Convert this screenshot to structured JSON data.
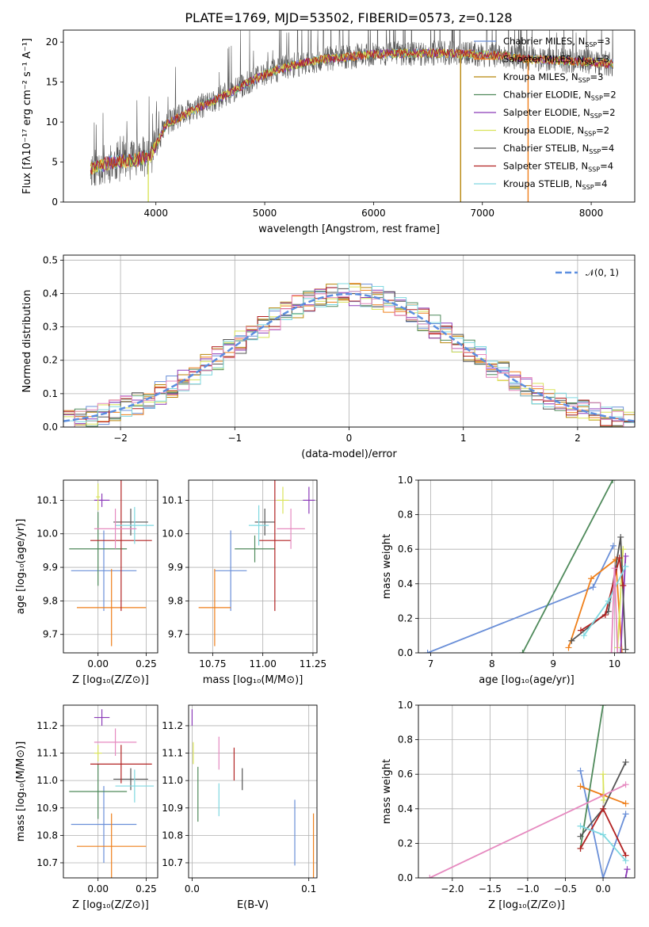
{
  "page": {
    "title": "PLATE=1769, MJD=53502, FIBERID=0573, z=0.128"
  },
  "chart_data": [
    {
      "id": "spectrum",
      "type": "line",
      "title": "PLATE=1769, MJD=53502, FIBERID=0573, z=0.128",
      "xlabel": "wavelength [Angstrom, rest frame]",
      "ylabel": "Flux [fλ10⁻¹⁷ erg cm⁻² s⁻¹ A⁻¹]",
      "xlim": [
        3150,
        8400
      ],
      "ylim": [
        0,
        21.5
      ],
      "xticks": [
        4000,
        5000,
        6000,
        7000,
        8000
      ],
      "yticks": [
        0,
        5,
        10,
        15,
        20
      ],
      "legend_loc": "right",
      "legend": [
        {
          "text": "Chabrier MILES, N",
          "sub": "SSP",
          "suffix": "=3",
          "color": "#6a8fd8"
        },
        {
          "text": "Salpeter MILES, N",
          "sub": "SSP",
          "suffix": "=3",
          "color": "#ef7f1a"
        },
        {
          "text": "Kroupa MILES, N",
          "sub": "SSP",
          "suffix": "=3",
          "color": "#b8860b"
        },
        {
          "text": "Chabrier ELODIE, N",
          "sub": "SSP",
          "suffix": "=2",
          "color": "#4f8a5b"
        },
        {
          "text": "Salpeter ELODIE, N",
          "sub": "SSP",
          "suffix": "=2",
          "color": "#8b3ab8"
        },
        {
          "text": "Kroupa ELODIE, N",
          "sub": "SSP",
          "suffix": "=2",
          "color": "#d9e35a"
        },
        {
          "text": "Chabrier STELIB, N",
          "sub": "SSP",
          "suffix": "=4",
          "color": "#555555"
        },
        {
          "text": "Salpeter STELIB, N",
          "sub": "SSP",
          "suffix": "=4",
          "color": "#b22222"
        },
        {
          "text": "Kroupa STELIB, N",
          "sub": "SSP",
          "suffix": "=4",
          "color": "#7fd8e0"
        }
      ],
      "continuum_wavelength": [
        3400,
        3600,
        3800,
        3950,
        4100,
        4300,
        4500,
        4700,
        4900,
        5100,
        5300,
        5500,
        5800,
        6000,
        6300,
        6600,
        6900,
        7200,
        7400,
        7700,
        8000,
        8200
      ],
      "continuum_flux": [
        4.2,
        5.0,
        5.2,
        5.8,
        9.8,
        11.2,
        12.5,
        13.8,
        15.3,
        16.5,
        17.2,
        17.8,
        18.2,
        18.5,
        18.6,
        18.6,
        18.5,
        18.3,
        17.9,
        17.7,
        17.5,
        17.3
      ],
      "drop_lines": [
        {
          "wavelength": 6800,
          "color": "#b8860b"
        },
        {
          "wavelength": 7420,
          "color": "#ef7f1a"
        },
        {
          "wavelength": 3930,
          "color": "#d9e35a"
        }
      ]
    },
    {
      "id": "residuals",
      "type": "bar",
      "xlabel": "(data-model)/error",
      "ylabel": "Normed distribution",
      "xlim": [
        -2.5,
        2.5
      ],
      "ylim": [
        0,
        0.515
      ],
      "xticks": [
        -2,
        -1,
        0,
        1,
        2
      ],
      "yticks": [
        0.0,
        0.1,
        0.2,
        0.3,
        0.4,
        0.5
      ],
      "bin_width": 0.1,
      "legend": [
        {
          "text": "𝒩(0, 1)",
          "color": "#5b8ee0"
        }
      ],
      "legend_loc": "upper right",
      "reference_curve": "N(0,1)",
      "grid": true
    },
    {
      "id": "age-vs-Z",
      "type": "scatter",
      "xlabel": "Z [log₁₀(Z/Z⊙)]",
      "ylabel": "age  [log₁₀(age/yr)]",
      "xlim": [
        -0.18,
        0.31
      ],
      "ylim": [
        9.645,
        10.16
      ],
      "xticks": [
        0.0,
        0.25
      ],
      "yticks": [
        9.7,
        9.8,
        9.9,
        10.0,
        10.1
      ],
      "points": [
        {
          "x": 0.03,
          "y": 9.89,
          "xerr": 0.17,
          "yerr": 0.12,
          "color": "#6a8fd8"
        },
        {
          "x": 0.07,
          "y": 9.78,
          "xerr": 0.18,
          "yerr": 0.115,
          "color": "#ef7f1a"
        },
        {
          "x": 0.0,
          "y": 9.955,
          "xerr": 0.15,
          "yerr": 0.11,
          "color": "#4f8a5b"
        },
        {
          "x": 0.02,
          "y": 10.1,
          "xerr": 0.04,
          "yerr": 0.02,
          "color": "#8b3ab8"
        },
        {
          "x": 0.0,
          "y": 10.11,
          "xerr": 0.01,
          "yerr": 0.04,
          "color": "#d9e35a"
        },
        {
          "x": 0.17,
          "y": 10.035,
          "xerr": 0.09,
          "yerr": 0.04,
          "color": "#555555"
        },
        {
          "x": 0.12,
          "y": 9.98,
          "xerr": 0.16,
          "yerr": 0.21,
          "color": "#b22222"
        },
        {
          "x": 0.19,
          "y": 10.025,
          "xerr": 0.1,
          "yerr": 0.055,
          "color": "#7fd8e0"
        },
        {
          "x": 0.09,
          "y": 10.015,
          "xerr": 0.11,
          "yerr": 0.06,
          "color": "#e68ac0"
        }
      ]
    },
    {
      "id": "age-vs-mass",
      "type": "scatter",
      "xlabel": "mass [log₁₀(M/M⊙)]",
      "ylabel": "",
      "xlim": [
        10.63,
        11.27
      ],
      "ylim": [
        9.645,
        10.16
      ],
      "xticks": [
        10.75,
        11.0,
        11.25
      ],
      "yticks": [
        9.7,
        9.8,
        9.9,
        10.0,
        10.1
      ],
      "points": [
        {
          "x": 10.84,
          "y": 9.89,
          "xerr": 0.08,
          "yerr": 0.12,
          "color": "#6a8fd8"
        },
        {
          "x": 10.76,
          "y": 9.78,
          "xerr": 0.08,
          "yerr": 0.115,
          "color": "#ef7f1a"
        },
        {
          "x": 10.96,
          "y": 9.955,
          "xerr": 0.1,
          "yerr": 0.04,
          "color": "#4f8a5b"
        },
        {
          "x": 11.23,
          "y": 10.1,
          "xerr": 0.03,
          "yerr": 0.04,
          "color": "#8b3ab8"
        },
        {
          "x": 11.1,
          "y": 10.1,
          "xerr": 0.03,
          "yerr": 0.04,
          "color": "#d9e35a"
        },
        {
          "x": 11.01,
          "y": 10.035,
          "xerr": 0.05,
          "yerr": 0.04,
          "color": "#555555"
        },
        {
          "x": 11.06,
          "y": 9.98,
          "xerr": 0.08,
          "yerr": 0.21,
          "color": "#b22222"
        },
        {
          "x": 10.98,
          "y": 10.025,
          "xerr": 0.05,
          "yerr": 0.06,
          "color": "#7fd8e0"
        },
        {
          "x": 11.14,
          "y": 10.015,
          "xerr": 0.07,
          "yerr": 0.06,
          "color": "#e68ac0"
        }
      ]
    },
    {
      "id": "mass-weight-vs-age",
      "type": "line",
      "xlabel": "age  [log₁₀(age/yr)]",
      "ylabel": "mass weight",
      "xlim": [
        6.8,
        10.33
      ],
      "ylim": [
        0,
        1.0
      ],
      "xticks": [
        7,
        8,
        9,
        10
      ],
      "yticks": [
        0.0,
        0.2,
        0.4,
        0.6,
        0.8,
        1.0
      ],
      "series": [
        {
          "color": "#6a8fd8",
          "x": [
            6.95,
            9.65,
            9.98
          ],
          "y": [
            0.0,
            0.38,
            0.62
          ]
        },
        {
          "color": "#ef7f1a",
          "x": [
            9.25,
            9.62,
            10.02,
            10.12
          ],
          "y": [
            0.03,
            0.43,
            0.54,
            0.0
          ]
        },
        {
          "color": "#4f8a5b",
          "x": [
            8.5,
            9.97
          ],
          "y": [
            0.0,
            1.0
          ]
        },
        {
          "color": "#8b3ab8",
          "x": [
            10.1,
            10.18
          ],
          "y": [
            0.0,
            0.56
          ]
        },
        {
          "color": "#d9e35a",
          "x": [
            10.05,
            10.14
          ],
          "y": [
            0.03,
            0.6
          ]
        },
        {
          "color": "#555555",
          "x": [
            9.3,
            9.9,
            10.1,
            10.18
          ],
          "y": [
            0.07,
            0.24,
            0.67,
            0.02
          ]
        },
        {
          "color": "#b22222",
          "x": [
            9.45,
            9.85,
            10.08,
            10.14
          ],
          "y": [
            0.13,
            0.22,
            0.55,
            0.39
          ]
        },
        {
          "color": "#7fd8e0",
          "x": [
            9.5,
            9.9,
            10.18
          ],
          "y": [
            0.1,
            0.3,
            0.5
          ]
        },
        {
          "color": "#e68ac0",
          "x": [
            9.95,
            10.0,
            10.05
          ],
          "y": [
            0.0,
            0.49,
            0.0
          ]
        }
      ]
    },
    {
      "id": "mass-vs-Z",
      "type": "scatter",
      "xlabel": "Z [log₁₀(Z/Z⊙)]",
      "ylabel": "mass [log₁₀(M/M⊙)]",
      "xlim": [
        -0.18,
        0.31
      ],
      "ylim": [
        10.645,
        11.275
      ],
      "xticks": [
        0.0,
        0.25
      ],
      "yticks": [
        10.7,
        10.8,
        10.9,
        11.0,
        11.1,
        11.2
      ],
      "points": [
        {
          "x": 0.03,
          "y": 10.84,
          "xerr": 0.17,
          "yerr": 0.14,
          "color": "#6a8fd8"
        },
        {
          "x": 0.07,
          "y": 10.76,
          "xerr": 0.18,
          "yerr": 0.12,
          "color": "#ef7f1a"
        },
        {
          "x": 0.0,
          "y": 10.96,
          "xerr": 0.15,
          "yerr": 0.1,
          "color": "#4f8a5b"
        },
        {
          "x": 0.02,
          "y": 11.23,
          "xerr": 0.04,
          "yerr": 0.03,
          "color": "#8b3ab8"
        },
        {
          "x": 0.0,
          "y": 11.1,
          "xerr": 0.02,
          "yerr": 0.03,
          "color": "#d9e35a"
        },
        {
          "x": 0.17,
          "y": 11.005,
          "xerr": 0.09,
          "yerr": 0.04,
          "color": "#555555"
        },
        {
          "x": 0.12,
          "y": 11.06,
          "xerr": 0.16,
          "yerr": 0.07,
          "color": "#b22222"
        },
        {
          "x": 0.19,
          "y": 10.98,
          "xerr": 0.1,
          "yerr": 0.06,
          "color": "#7fd8e0"
        },
        {
          "x": 0.09,
          "y": 11.14,
          "xerr": 0.11,
          "yerr": 0.05,
          "color": "#e68ac0"
        }
      ]
    },
    {
      "id": "mass-vs-EBV",
      "type": "scatter",
      "xlabel": "E(B-V)",
      "ylabel": "",
      "xlim": [
        -0.003,
        0.107
      ],
      "ylim": [
        10.645,
        11.275
      ],
      "xticks": [
        0.0,
        0.1
      ],
      "yticks": [
        10.7,
        10.8,
        10.9,
        11.0,
        11.1,
        11.2
      ],
      "points": [
        {
          "x": 0.088,
          "y": 10.81,
          "xerr": 0.0,
          "yerr": 0.12,
          "color": "#6a8fd8"
        },
        {
          "x": 0.104,
          "y": 10.76,
          "xerr": 0.0,
          "yerr": 0.12,
          "color": "#ef7f1a"
        },
        {
          "x": 0.005,
          "y": 10.95,
          "xerr": 0.0,
          "yerr": 0.1,
          "color": "#4f8a5b"
        },
        {
          "x": 0.0,
          "y": 11.23,
          "xerr": 0.0,
          "yerr": 0.03,
          "color": "#8b3ab8"
        },
        {
          "x": 0.001,
          "y": 11.1,
          "xerr": 0.0,
          "yerr": 0.04,
          "color": "#d9e35a"
        },
        {
          "x": 0.043,
          "y": 11.005,
          "xerr": 0.0,
          "yerr": 0.04,
          "color": "#555555"
        },
        {
          "x": 0.036,
          "y": 11.06,
          "xerr": 0.0,
          "yerr": 0.06,
          "color": "#b22222"
        },
        {
          "x": 0.023,
          "y": 10.93,
          "xerr": 0.0,
          "yerr": 0.06,
          "color": "#7fd8e0"
        },
        {
          "x": 0.023,
          "y": 11.1,
          "xerr": 0.0,
          "yerr": 0.06,
          "color": "#e68ac0"
        }
      ]
    },
    {
      "id": "mass-weight-vs-Z",
      "type": "line",
      "xlabel": "Z [log₁₀(Z/Z⊙)]",
      "ylabel": "mass weight",
      "xlim": [
        -2.45,
        0.42
      ],
      "ylim": [
        0,
        1.0
      ],
      "xticks": [
        -2.0,
        -1.5,
        -1.0,
        -0.5,
        0.0
      ],
      "yticks": [
        0.0,
        0.2,
        0.4,
        0.6,
        0.8,
        1.0
      ],
      "series": [
        {
          "color": "#6a8fd8",
          "x": [
            -0.3,
            0.0,
            0.3
          ],
          "y": [
            0.62,
            0.0,
            0.37
          ]
        },
        {
          "color": "#ef7f1a",
          "x": [
            -0.3,
            0.0,
            0.3
          ],
          "y": [
            0.53,
            0.48,
            0.43
          ]
        },
        {
          "color": "#4f8a5b",
          "x": [
            -0.3,
            0.0
          ],
          "y": [
            0.17,
            1.0
          ]
        },
        {
          "color": "#8b3ab8",
          "x": [
            0.3,
            0.32
          ],
          "y": [
            0.0,
            0.05
          ]
        },
        {
          "color": "#d9e35a",
          "x": [
            0.0,
            0.01
          ],
          "y": [
            0.6,
            0.45
          ]
        },
        {
          "color": "#555555",
          "x": [
            -0.3,
            0.0,
            0.3
          ],
          "y": [
            0.24,
            0.4,
            0.67
          ]
        },
        {
          "color": "#b22222",
          "x": [
            -0.3,
            0.0,
            0.3
          ],
          "y": [
            0.17,
            0.4,
            0.13
          ]
        },
        {
          "color": "#7fd8e0",
          "x": [
            -0.3,
            0.0,
            0.3
          ],
          "y": [
            0.3,
            0.25,
            0.1
          ]
        },
        {
          "color": "#e68ac0",
          "x": [
            -2.3,
            0.3
          ],
          "y": [
            0.0,
            0.54
          ]
        }
      ]
    }
  ]
}
